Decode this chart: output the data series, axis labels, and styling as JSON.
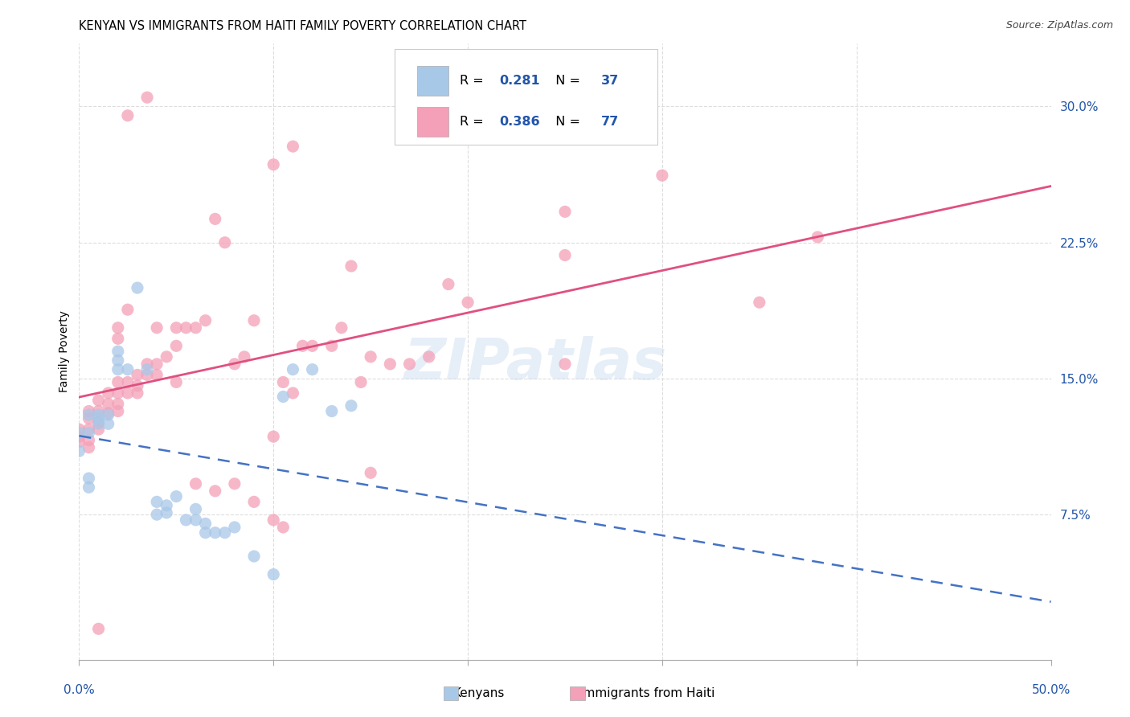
{
  "title": "KENYAN VS IMMIGRANTS FROM HAITI FAMILY POVERTY CORRELATION CHART",
  "source": "Source: ZipAtlas.com",
  "ylabel": "Family Poverty",
  "yticks": [
    "7.5%",
    "15.0%",
    "22.5%",
    "30.0%"
  ],
  "ytick_vals": [
    0.075,
    0.15,
    0.225,
    0.3
  ],
  "xlim": [
    0.0,
    0.5
  ],
  "ylim": [
    -0.005,
    0.335
  ],
  "watermark": "ZIPatlas",
  "kenyan_color": "#A8C8E8",
  "haiti_color": "#F4A0B8",
  "kenyan_line_color": "#4472C4",
  "haiti_line_color": "#E05080",
  "legend_r1": "0.281",
  "legend_n1": "37",
  "legend_r2": "0.386",
  "legend_n2": "77",
  "legend_text_color": "#2255AA",
  "background_color": "#FFFFFF",
  "grid_color": "#DDDDDD",
  "title_fontsize": 10.5,
  "kenyan_points": [
    [
      0.0,
      0.11
    ],
    [
      0.0,
      0.12
    ],
    [
      0.005,
      0.13
    ],
    [
      0.005,
      0.12
    ],
    [
      0.005,
      0.09
    ],
    [
      0.005,
      0.095
    ],
    [
      0.01,
      0.13
    ],
    [
      0.01,
      0.125
    ],
    [
      0.01,
      0.128
    ],
    [
      0.015,
      0.13
    ],
    [
      0.015,
      0.125
    ],
    [
      0.02,
      0.165
    ],
    [
      0.02,
      0.16
    ],
    [
      0.02,
      0.155
    ],
    [
      0.025,
      0.155
    ],
    [
      0.03,
      0.2
    ],
    [
      0.035,
      0.155
    ],
    [
      0.04,
      0.075
    ],
    [
      0.04,
      0.082
    ],
    [
      0.045,
      0.08
    ],
    [
      0.045,
      0.076
    ],
    [
      0.05,
      0.085
    ],
    [
      0.055,
      0.072
    ],
    [
      0.06,
      0.072
    ],
    [
      0.06,
      0.078
    ],
    [
      0.065,
      0.065
    ],
    [
      0.065,
      0.07
    ],
    [
      0.07,
      0.065
    ],
    [
      0.075,
      0.065
    ],
    [
      0.08,
      0.068
    ],
    [
      0.09,
      0.052
    ],
    [
      0.1,
      0.042
    ],
    [
      0.105,
      0.14
    ],
    [
      0.11,
      0.155
    ],
    [
      0.12,
      0.155
    ],
    [
      0.13,
      0.132
    ],
    [
      0.14,
      0.135
    ]
  ],
  "haiti_points": [
    [
      0.0,
      0.118
    ],
    [
      0.0,
      0.122
    ],
    [
      0.0,
      0.115
    ],
    [
      0.005,
      0.128
    ],
    [
      0.005,
      0.132
    ],
    [
      0.005,
      0.122
    ],
    [
      0.005,
      0.116
    ],
    [
      0.005,
      0.112
    ],
    [
      0.01,
      0.138
    ],
    [
      0.01,
      0.132
    ],
    [
      0.01,
      0.126
    ],
    [
      0.01,
      0.122
    ],
    [
      0.015,
      0.142
    ],
    [
      0.015,
      0.136
    ],
    [
      0.015,
      0.131
    ],
    [
      0.02,
      0.148
    ],
    [
      0.02,
      0.142
    ],
    [
      0.02,
      0.136
    ],
    [
      0.02,
      0.132
    ],
    [
      0.02,
      0.178
    ],
    [
      0.02,
      0.172
    ],
    [
      0.025,
      0.148
    ],
    [
      0.025,
      0.142
    ],
    [
      0.025,
      0.188
    ],
    [
      0.03,
      0.152
    ],
    [
      0.03,
      0.146
    ],
    [
      0.03,
      0.142
    ],
    [
      0.035,
      0.158
    ],
    [
      0.035,
      0.152
    ],
    [
      0.035,
      0.305
    ],
    [
      0.04,
      0.158
    ],
    [
      0.04,
      0.152
    ],
    [
      0.04,
      0.178
    ],
    [
      0.045,
      0.162
    ],
    [
      0.05,
      0.168
    ],
    [
      0.05,
      0.148
    ],
    [
      0.05,
      0.178
    ],
    [
      0.055,
      0.178
    ],
    [
      0.06,
      0.178
    ],
    [
      0.06,
      0.092
    ],
    [
      0.065,
      0.182
    ],
    [
      0.07,
      0.238
    ],
    [
      0.07,
      0.088
    ],
    [
      0.075,
      0.225
    ],
    [
      0.08,
      0.158
    ],
    [
      0.08,
      0.092
    ],
    [
      0.085,
      0.162
    ],
    [
      0.09,
      0.182
    ],
    [
      0.09,
      0.082
    ],
    [
      0.1,
      0.118
    ],
    [
      0.1,
      0.072
    ],
    [
      0.1,
      0.268
    ],
    [
      0.105,
      0.148
    ],
    [
      0.105,
      0.068
    ],
    [
      0.11,
      0.142
    ],
    [
      0.11,
      0.278
    ],
    [
      0.115,
      0.168
    ],
    [
      0.12,
      0.168
    ],
    [
      0.13,
      0.168
    ],
    [
      0.135,
      0.178
    ],
    [
      0.14,
      0.212
    ],
    [
      0.145,
      0.148
    ],
    [
      0.15,
      0.162
    ],
    [
      0.15,
      0.098
    ],
    [
      0.16,
      0.158
    ],
    [
      0.17,
      0.158
    ],
    [
      0.18,
      0.162
    ],
    [
      0.19,
      0.202
    ],
    [
      0.2,
      0.192
    ],
    [
      0.25,
      0.242
    ],
    [
      0.25,
      0.218
    ],
    [
      0.25,
      0.158
    ],
    [
      0.3,
      0.262
    ],
    [
      0.35,
      0.192
    ],
    [
      0.38,
      0.228
    ],
    [
      0.01,
      0.012
    ],
    [
      0.025,
      0.295
    ]
  ]
}
